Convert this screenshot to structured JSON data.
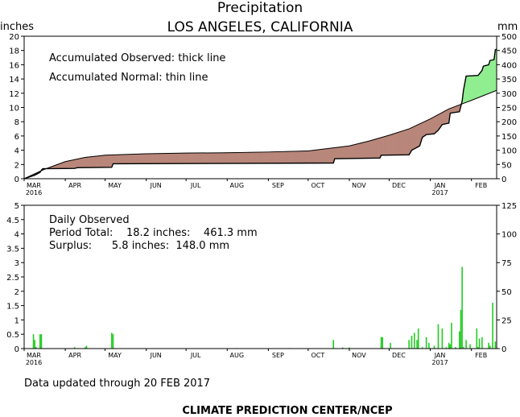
{
  "header": {
    "title": "Precipitation",
    "subtitle": "LOS ANGELES, CALIFORNIA",
    "left_unit": "inches",
    "right_unit": "mm"
  },
  "top_panel": {
    "note_observed": "Accumulated Observed: thick line",
    "note_normal": "Accumulated Normal: thin line"
  },
  "bottom_panel": {
    "title": "Daily Observed",
    "period_total": "Period Total:    18.2 inches:    461.3 mm",
    "surplus": "Surplus:      5.8 inches:  148.0 mm"
  },
  "footer": {
    "updated": "Data updated through 20 FEB 2017",
    "credit": "CLIMATE PREDICTION CENTER/NCEP"
  },
  "colors": {
    "deficit_fill": "#b8877a",
    "surplus_fill": "#90ee90",
    "daily_bar": "#22cc22",
    "line": "#000000"
  },
  "chart_data": [
    {
      "type": "area",
      "title": "Precipitation",
      "subtitle": "LOS ANGELES, CALIFORNIA",
      "ylabel": "inches",
      "ylabel_right": "mm",
      "xlim_days": [
        0,
        356
      ],
      "ylim": [
        0,
        20
      ],
      "ylim_right": [
        0,
        500
      ],
      "yticks": [
        0,
        2,
        4,
        6,
        8,
        10,
        12,
        14,
        16,
        18,
        20
      ],
      "yticks_right": [
        0,
        50,
        100,
        150,
        200,
        250,
        300,
        350,
        400,
        450,
        500
      ],
      "x_tick_labels": [
        "MAR",
        "APR",
        "MAY",
        "JUN",
        "JUL",
        "AUG",
        "SEP",
        "OCT",
        "NOV",
        "DEC",
        "JAN",
        "FEB"
      ],
      "x_tick_days": [
        0,
        31,
        61,
        92,
        122,
        153,
        184,
        214,
        245,
        275,
        306,
        337
      ],
      "year_labels": [
        {
          "label": "2016",
          "day": 0
        },
        {
          "label": "2017",
          "day": 306
        }
      ],
      "series": [
        {
          "name": "Accumulated Observed",
          "points": [
            [
              0,
              0
            ],
            [
              8,
              0.5
            ],
            [
              12,
              0.9
            ],
            [
              13,
              1.2
            ],
            [
              14,
              1.4
            ],
            [
              38,
              1.45
            ],
            [
              40,
              1.55
            ],
            [
              66,
              1.6
            ],
            [
              67,
              2.1
            ],
            [
              233,
              2.2
            ],
            [
              234,
              2.8
            ],
            [
              268,
              2.9
            ],
            [
              269,
              3.3
            ],
            [
              290,
              3.35
            ],
            [
              292,
              4.0
            ],
            [
              298,
              4.6
            ],
            [
              300,
              5.8
            ],
            [
              303,
              6.2
            ],
            [
              309,
              6.3
            ],
            [
              312,
              6.8
            ],
            [
              315,
              7.6
            ],
            [
              320,
              7.8
            ],
            [
              321,
              9.2
            ],
            [
              328,
              9.4
            ],
            [
              330,
              10.9
            ],
            [
              331,
              12.4
            ],
            [
              333,
              14.4
            ],
            [
              342,
              14.5
            ],
            [
              345,
              15.2
            ],
            [
              346,
              15.8
            ],
            [
              350,
              16.0
            ],
            [
              351,
              16.6
            ],
            [
              354,
              16.7
            ],
            [
              355,
              18.1
            ],
            [
              356,
              18.2
            ]
          ]
        },
        {
          "name": "Accumulated Normal",
          "points": [
            [
              0,
              0
            ],
            [
              15,
              1.3
            ],
            [
              31,
              2.4
            ],
            [
              46,
              3.0
            ],
            [
              61,
              3.3
            ],
            [
              92,
              3.5
            ],
            [
              122,
              3.6
            ],
            [
              153,
              3.65
            ],
            [
              184,
              3.75
            ],
            [
              214,
              3.9
            ],
            [
              245,
              4.6
            ],
            [
              260,
              5.3
            ],
            [
              275,
              6.1
            ],
            [
              290,
              7.0
            ],
            [
              306,
              8.4
            ],
            [
              320,
              9.8
            ],
            [
              337,
              11.0
            ],
            [
              356,
              12.4
            ]
          ]
        }
      ]
    },
    {
      "type": "bar",
      "title": "Daily Observed",
      "ylim": [
        0,
        5
      ],
      "ylim_right": [
        0,
        125
      ],
      "yticks": [
        0,
        0.5,
        1,
        1.5,
        2,
        2.5,
        3,
        3.5,
        4,
        4.5,
        5
      ],
      "ytick_labels": [
        "0",
        "0.5",
        "1",
        "1.5",
        "2",
        "2.5",
        "3",
        "3.5",
        "4",
        "4.5",
        "5"
      ],
      "yticks_right": [
        0,
        25,
        50,
        75,
        100,
        125
      ],
      "x_tick_labels": [
        "MAR",
        "APR",
        "MAY",
        "JUN",
        "JUL",
        "AUG",
        "SEP",
        "OCT",
        "NOV",
        "DEC",
        "JAN",
        "FEB"
      ],
      "series": [
        {
          "name": "Daily Observed",
          "x_day": [
            7,
            8,
            9,
            12,
            13,
            38,
            46,
            47,
            66,
            67,
            160,
            200,
            233,
            240,
            245,
            269,
            270,
            276,
            290,
            292,
            294,
            296,
            297,
            300,
            303,
            305,
            309,
            312,
            315,
            318,
            320,
            321,
            322,
            325,
            328,
            329,
            330,
            331,
            333,
            336,
            341,
            342,
            343,
            345,
            350,
            351,
            353,
            355
          ],
          "values": [
            0.5,
            0.3,
            0.05,
            0.5,
            0.5,
            0.05,
            0.05,
            0.1,
            0.55,
            0.5,
            0.02,
            0.02,
            0.3,
            0.04,
            0.04,
            0.4,
            0.4,
            0.2,
            0.3,
            0.45,
            0.55,
            0.3,
            0.7,
            0.05,
            0.4,
            0.2,
            0.1,
            0.85,
            0.7,
            0.05,
            0.2,
            0.15,
            0.9,
            0.05,
            0.6,
            1.35,
            2.85,
            0.05,
            0.3,
            0.15,
            0.7,
            0.05,
            0.35,
            0.4,
            0.2,
            0.1,
            1.6,
            0.25
          ]
        }
      ]
    }
  ]
}
